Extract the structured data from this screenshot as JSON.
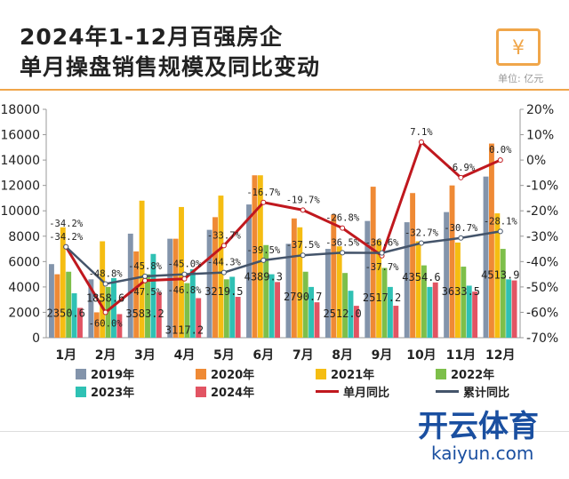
{
  "header": {
    "title_line1": "2024年1-12月百强房企",
    "title_line2": "单月操盘销售规模及同比变动",
    "unit": "单位: 亿元",
    "logo_glyph": "¥"
  },
  "brand": {
    "name": "开云体育",
    "url": "kaiyun.com"
  },
  "chart_data": {
    "type": "bar",
    "title": "2024年1-12月百强房企单月操盘销售规模及同比变动",
    "categories": [
      "1月",
      "2月",
      "3月",
      "4月",
      "5月",
      "6月",
      "7月",
      "8月",
      "9月",
      "10月",
      "11月",
      "12月"
    ],
    "ylim": [
      0,
      18000
    ],
    "yticks": [
      0,
      2000,
      4000,
      6000,
      8000,
      10000,
      12000,
      14000,
      16000,
      18000
    ],
    "y2lim": [
      -70,
      20
    ],
    "y2ticks": [
      "20%",
      "10%",
      "0%",
      "-10%",
      "-20%",
      "-30%",
      "-40%",
      "-50%",
      "-60%",
      "-70%"
    ],
    "series": [
      {
        "name": "2019年",
        "color": "#8394ab",
        "values": [
          5800,
          4600,
          8200,
          7800,
          8500,
          10500,
          7400,
          7000,
          9200,
          9100,
          9900,
          12700
        ]
      },
      {
        "name": "2020年",
        "color": "#ef8a35",
        "values": [
          5000,
          2000,
          6800,
          7800,
          9500,
          12800,
          9400,
          9700,
          11900,
          11400,
          12000,
          15300
        ]
      },
      {
        "name": "2021年",
        "color": "#f5bd12",
        "values": [
          8700,
          7600,
          10800,
          10300,
          11200,
          12800,
          8700,
          7200,
          7700,
          7600,
          7500,
          9800
        ]
      },
      {
        "name": "2022年",
        "color": "#7dbf4a",
        "values": [
          5200,
          4000,
          5000,
          4300,
          4600,
          7300,
          5200,
          5100,
          5500,
          5700,
          5600,
          7000
        ]
      },
      {
        "name": "2023年",
        "color": "#2fc1b4",
        "values": [
          3500,
          4700,
          6600,
          5400,
          4800,
          5000,
          4000,
          3700,
          4000,
          4000,
          4100,
          4600
        ]
      },
      {
        "name": "2024年",
        "color": "#e25463",
        "values": [
          2350.6,
          1858.6,
          3583.2,
          3117.2,
          3219.5,
          4389.3,
          2790.7,
          2512.0,
          2517.2,
          4354.6,
          3633.5,
          4513.9
        ],
        "labels": [
          "2350.6",
          "1858.6",
          "3583.2",
          "3117.2",
          "3219.5",
          "4389.3",
          "2790.7",
          "2512.0",
          "2517.2",
          "4354.6",
          "3633.5",
          "4513.9"
        ]
      }
    ],
    "lines": [
      {
        "name": "单月同比",
        "color": "#c0181e",
        "values": [
          -34.2,
          -60.0,
          -47.5,
          -46.8,
          -33.7,
          -16.7,
          -19.7,
          -26.8,
          -37.7,
          7.1,
          -6.9,
          0.0
        ],
        "labels": [
          "-34.2%",
          "-60.0%",
          "-47.5%",
          "-46.8%",
          "-33.7%",
          "-16.7%",
          "-19.7%",
          "-26.8%",
          "-37.7%",
          "7.1%",
          "-6.9%",
          "0.0%"
        ]
      },
      {
        "name": "累计同比",
        "color": "#44546a",
        "values": [
          -34.2,
          -48.8,
          -45.8,
          -45.0,
          -44.3,
          -39.5,
          -37.5,
          -36.5,
          -36.6,
          -32.7,
          -30.7,
          -28.1
        ],
        "labels": [
          "-34.2%",
          "-48.8%",
          "-45.8%",
          "-45.0%",
          "-44.3%",
          "-39.5%",
          "-37.5%",
          "-36.5%",
          "-36.6%",
          "-32.7%",
          "-30.7%",
          "-28.1%"
        ]
      }
    ],
    "legend_position": "bottom"
  }
}
